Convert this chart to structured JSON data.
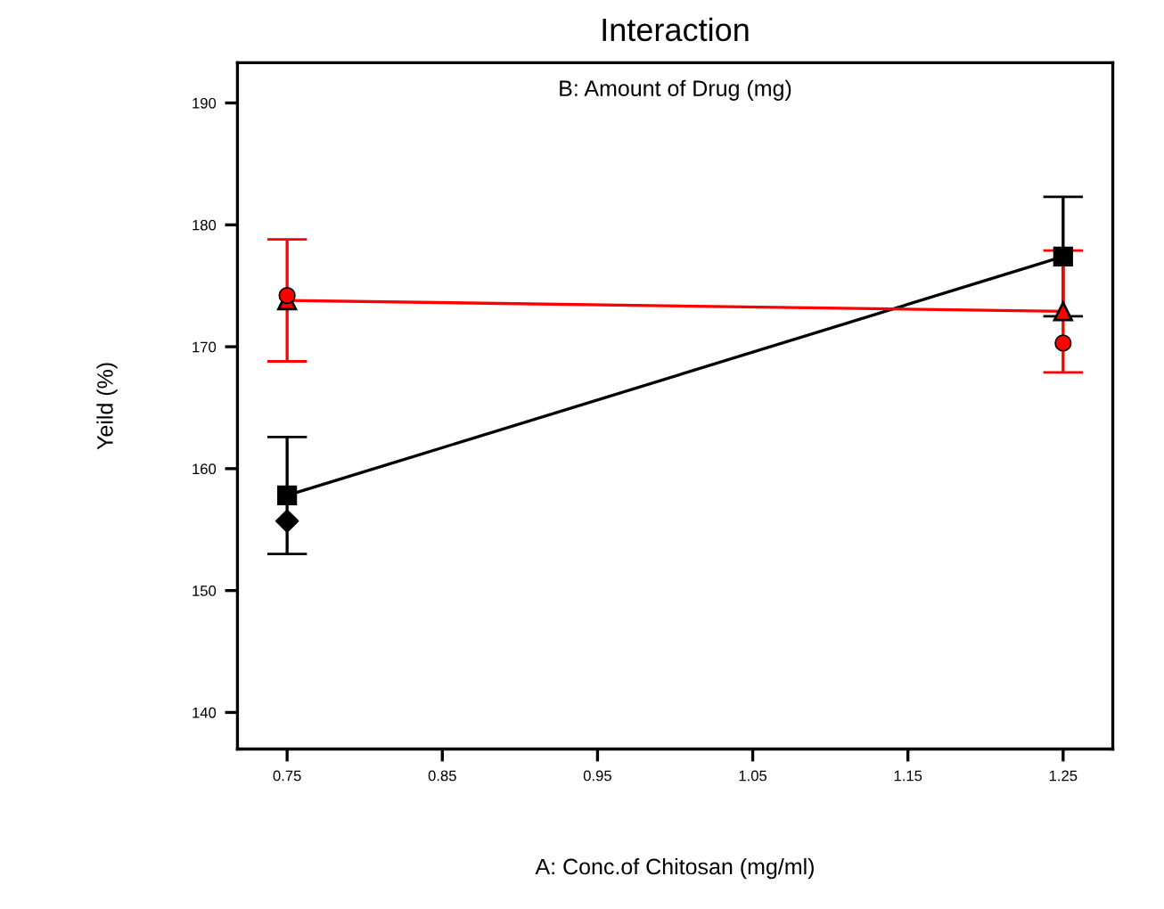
{
  "chart_data": {
    "type": "line",
    "title": "Interaction",
    "subtitle": "B: Amount of Drug (mg)",
    "xlabel": "A: Conc.of Chitosan (mg/ml)",
    "ylabel": "Yeild (%)",
    "x": [
      0.75,
      1.25
    ],
    "series": [
      {
        "color": "#000000",
        "marker": "square",
        "values": [
          157.8,
          177.4
        ],
        "errors": [
          4.8,
          4.9
        ]
      },
      {
        "color": "#ff0000",
        "marker": "triangle",
        "values": [
          173.8,
          172.9
        ],
        "errors": [
          5.0,
          5.0
        ]
      },
      {
        "type": "scatter",
        "color": "#000000",
        "marker": "diamond",
        "values": [
          155.7,
          null
        ]
      },
      {
        "type": "scatter",
        "color": "#ff0000",
        "marker": "circle",
        "values": [
          174.2,
          170.3
        ]
      }
    ],
    "xlim": [
      0.718,
      1.282
    ],
    "xticks": [
      0.75,
      0.85,
      0.95,
      1.05,
      1.15,
      1.25
    ],
    "ylim": [
      137,
      193.3
    ],
    "yticks": [
      140,
      150,
      160,
      170,
      180,
      190
    ],
    "grid": false,
    "legend": false
  }
}
